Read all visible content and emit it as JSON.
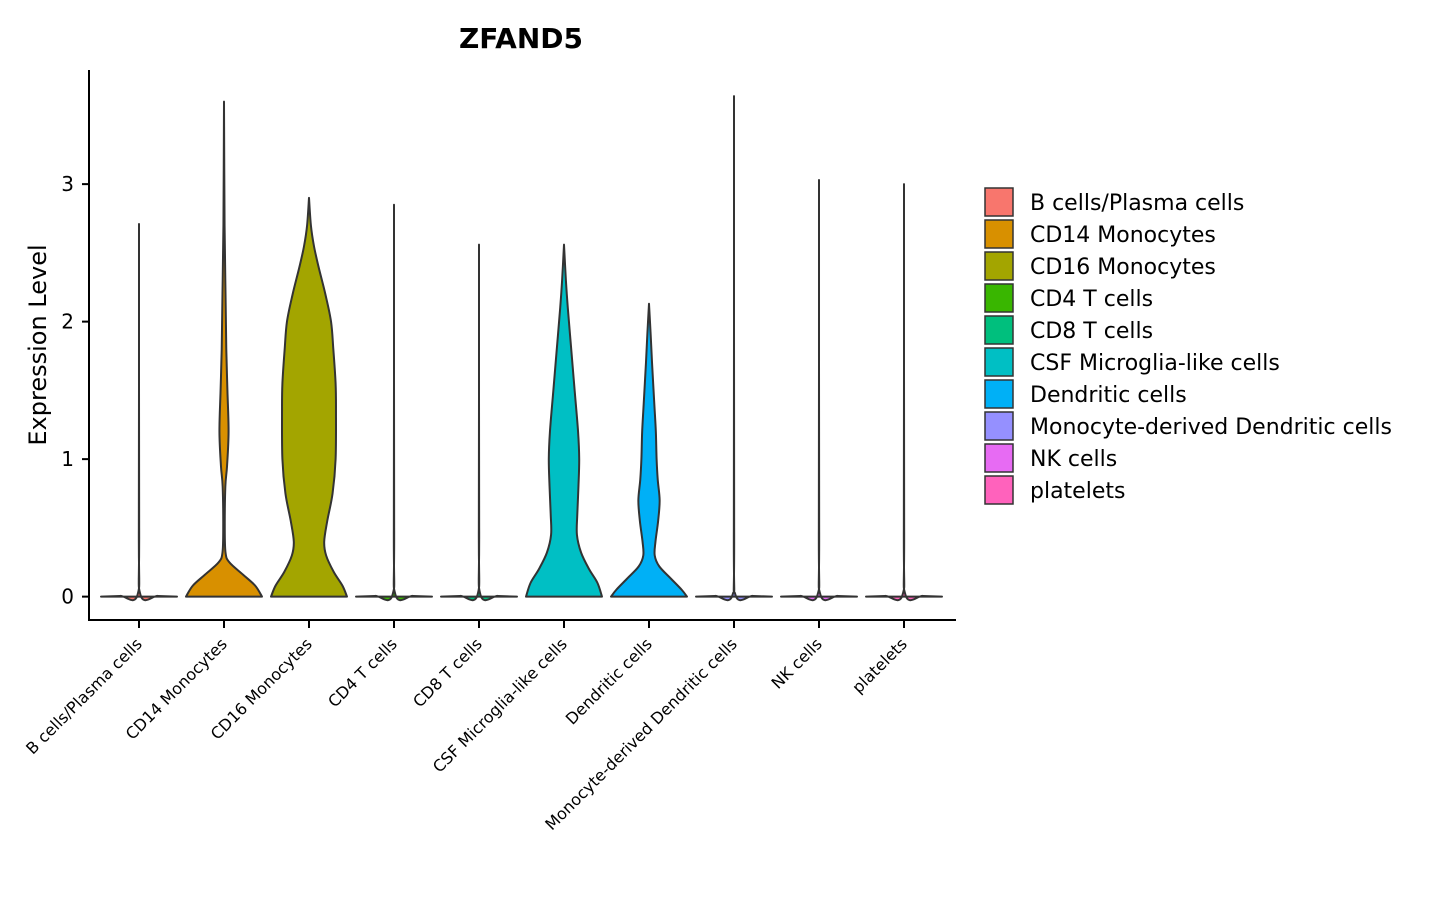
{
  "chart_data": {
    "type": "violin",
    "title": "ZFAND5",
    "xlabel": "",
    "ylabel": "Expression Level",
    "ylim": [
      -0.17,
      3.83
    ],
    "yticks": [
      0,
      1,
      2,
      3
    ],
    "categories": [
      "B cells/Plasma cells",
      "CD14 Monocytes",
      "CD16 Monocytes",
      "CD4 T cells",
      "CD8 T cells",
      "CSF Microglia-like cells",
      "Dendritic cells",
      "Monocyte-derived Dendritic cells",
      "NK cells",
      "platelets"
    ],
    "colors": [
      "#F8766D",
      "#D89000",
      "#A3A500",
      "#39B600",
      "#00BF7D",
      "#00BFC4",
      "#00B0F6",
      "#9590FF",
      "#E76BF3",
      "#FF62BC"
    ],
    "max_values": [
      2.71,
      3.6,
      2.9,
      2.85,
      2.56,
      2.56,
      2.13,
      3.64,
      3.03,
      3.0
    ],
    "density_profiles": [
      [
        [
          0,
          1.0
        ],
        [
          0.005,
          0.5
        ],
        [
          0.012,
          0.04
        ],
        [
          0.5,
          0.004
        ],
        [
          2.71,
          0.0
        ]
      ],
      [
        [
          0,
          1.0
        ],
        [
          0.08,
          0.82
        ],
        [
          0.16,
          0.5
        ],
        [
          0.25,
          0.14
        ],
        [
          0.32,
          0.04
        ],
        [
          0.5,
          0.02
        ],
        [
          0.8,
          0.035
        ],
        [
          0.95,
          0.08
        ],
        [
          1.2,
          0.12
        ],
        [
          1.5,
          0.09
        ],
        [
          1.8,
          0.06
        ],
        [
          2.2,
          0.04
        ],
        [
          2.7,
          0.015
        ],
        [
          3.6,
          0.0
        ]
      ],
      [
        [
          0,
          1.0
        ],
        [
          0.08,
          0.88
        ],
        [
          0.18,
          0.65
        ],
        [
          0.3,
          0.45
        ],
        [
          0.4,
          0.4
        ],
        [
          0.55,
          0.48
        ],
        [
          0.75,
          0.62
        ],
        [
          1.0,
          0.7
        ],
        [
          1.35,
          0.71
        ],
        [
          1.55,
          0.7
        ],
        [
          1.8,
          0.64
        ],
        [
          2.0,
          0.58
        ],
        [
          2.2,
          0.43
        ],
        [
          2.4,
          0.25
        ],
        [
          2.55,
          0.13
        ],
        [
          2.7,
          0.05
        ],
        [
          2.9,
          0.0
        ]
      ],
      [
        [
          0,
          1.0
        ],
        [
          0.005,
          0.5
        ],
        [
          0.012,
          0.04
        ],
        [
          0.5,
          0.004
        ],
        [
          2.85,
          0.0
        ]
      ],
      [
        [
          0,
          1.0
        ],
        [
          0.005,
          0.5
        ],
        [
          0.012,
          0.04
        ],
        [
          0.5,
          0.004
        ],
        [
          2.56,
          0.0
        ]
      ],
      [
        [
          0,
          1.0
        ],
        [
          0.1,
          0.88
        ],
        [
          0.2,
          0.66
        ],
        [
          0.32,
          0.45
        ],
        [
          0.45,
          0.34
        ],
        [
          0.6,
          0.35
        ],
        [
          0.8,
          0.38
        ],
        [
          1.0,
          0.4
        ],
        [
          1.2,
          0.37
        ],
        [
          1.5,
          0.28
        ],
        [
          1.8,
          0.19
        ],
        [
          2.1,
          0.1
        ],
        [
          2.3,
          0.05
        ],
        [
          2.56,
          0.0
        ]
      ],
      [
        [
          0,
          1.0
        ],
        [
          0.05,
          0.86
        ],
        [
          0.13,
          0.58
        ],
        [
          0.22,
          0.27
        ],
        [
          0.3,
          0.15
        ],
        [
          0.4,
          0.17
        ],
        [
          0.55,
          0.24
        ],
        [
          0.7,
          0.28
        ],
        [
          0.85,
          0.23
        ],
        [
          1.0,
          0.2
        ],
        [
          1.2,
          0.18
        ],
        [
          1.4,
          0.14
        ],
        [
          1.7,
          0.08
        ],
        [
          1.9,
          0.045
        ],
        [
          2.13,
          0.0
        ]
      ],
      [
        [
          0,
          1.0
        ],
        [
          0.005,
          0.5
        ],
        [
          0.012,
          0.04
        ],
        [
          0.5,
          0.004
        ],
        [
          3.64,
          0.0
        ]
      ],
      [
        [
          0,
          1.0
        ],
        [
          0.005,
          0.5
        ],
        [
          0.012,
          0.04
        ],
        [
          0.5,
          0.004
        ],
        [
          3.03,
          0.0
        ]
      ],
      [
        [
          0,
          1.0
        ],
        [
          0.005,
          0.5
        ],
        [
          0.012,
          0.04
        ],
        [
          0.5,
          0.004
        ],
        [
          3.0,
          0.0
        ]
      ]
    ],
    "legend": {
      "position": "right",
      "entries": [
        "B cells/Plasma cells",
        "CD14 Monocytes",
        "CD16 Monocytes",
        "CD4 T cells",
        "CD8 T cells",
        "CSF Microglia-like cells",
        "Dendritic cells",
        "Monocyte-derived Dendritic cells",
        "NK cells",
        "platelets"
      ]
    }
  }
}
